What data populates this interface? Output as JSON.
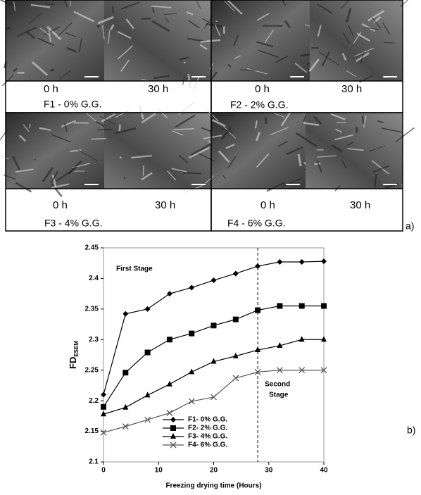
{
  "panel_a": {
    "cells": [
      {
        "time_left": "0 h",
        "time_right": "30 h",
        "label": "F1 -  0% G.G."
      },
      {
        "time_left": "0 h",
        "time_right": "30 h",
        "label": "F2 -  2% G.G."
      },
      {
        "time_left": "0 h",
        "time_right": "30 h",
        "label": "F3 -  4% G.G."
      },
      {
        "time_left": "0 h",
        "time_right": "30 h",
        "label": "F4 -  6% G.G."
      }
    ],
    "tag": "a)"
  },
  "chart_data": {
    "type": "line",
    "tag": "b)",
    "xlabel": "Freezing drying time (Hours)",
    "ylabel": "FD",
    "ylabel_sub": "ESEM",
    "annotations": [
      "First Stage",
      "Second",
      "Stage"
    ],
    "vline_x": 28,
    "x": [
      0,
      4,
      8,
      12,
      16,
      20,
      24,
      28,
      32,
      36,
      40
    ],
    "xlim": [
      0,
      40
    ],
    "xticks": [
      0,
      10,
      20,
      30,
      40
    ],
    "ylim": [
      2.1,
      2.45
    ],
    "yticks": [
      2.1,
      2.15,
      2.2,
      2.25,
      2.3,
      2.35,
      2.4,
      2.45
    ],
    "series": [
      {
        "name": "F1-  0% G.G.",
        "color": "#000000",
        "marker": "diamond",
        "values": [
          2.21,
          2.342,
          2.35,
          2.375,
          2.385,
          2.397,
          2.408,
          2.42,
          2.427,
          2.427,
          2.428
        ]
      },
      {
        "name": "F2-  2% G.G.",
        "color": "#000000",
        "marker": "square",
        "values": [
          2.19,
          2.246,
          2.279,
          2.3,
          2.31,
          2.323,
          2.333,
          2.348,
          2.355,
          2.355,
          2.355
        ]
      },
      {
        "name": "F3-  4% G.G.",
        "color": "#000000",
        "marker": "triangle",
        "values": [
          2.178,
          2.189,
          2.209,
          2.227,
          2.247,
          2.264,
          2.273,
          2.283,
          2.29,
          2.3,
          2.3
        ]
      },
      {
        "name": "F4-  6% G.G.",
        "color": "#555555",
        "marker": "x",
        "values": [
          2.148,
          2.158,
          2.169,
          2.18,
          2.199,
          2.206,
          2.237,
          2.247,
          2.25,
          2.25,
          2.25
        ]
      }
    ]
  }
}
